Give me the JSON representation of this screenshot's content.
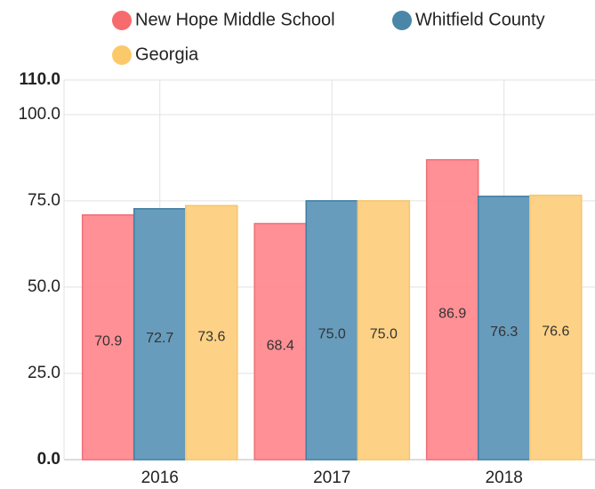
{
  "chart_data": {
    "type": "bar",
    "categories": [
      "2016",
      "2017",
      "2018"
    ],
    "series": [
      {
        "name": "New Hope Middle School",
        "color": "#ff8a8f",
        "values": [
          70.9,
          68.4,
          86.9
        ],
        "value_labels": [
          "70.9",
          "68.4",
          "86.9"
        ]
      },
      {
        "name": "Whitfield County",
        "color": "#5f97b8",
        "values": [
          72.7,
          75.0,
          76.3
        ],
        "value_labels": [
          "72.7",
          "75.0",
          "76.3"
        ]
      },
      {
        "name": "Georgia",
        "color": "#fdd07f",
        "values": [
          73.6,
          75.0,
          76.6
        ],
        "value_labels": [
          "73.6",
          "75.0",
          "76.6"
        ]
      }
    ],
    "ylim": [
      0,
      110
    ],
    "yticks": [
      {
        "value": 0,
        "label": "0.0"
      },
      {
        "value": 25,
        "label": "25.0"
      },
      {
        "value": 50,
        "label": "50.0"
      },
      {
        "value": 75,
        "label": "75.0"
      },
      {
        "value": 100,
        "label": "100.0"
      },
      {
        "value": 110,
        "label": "110.0"
      }
    ],
    "grid": true,
    "legend": "top"
  }
}
